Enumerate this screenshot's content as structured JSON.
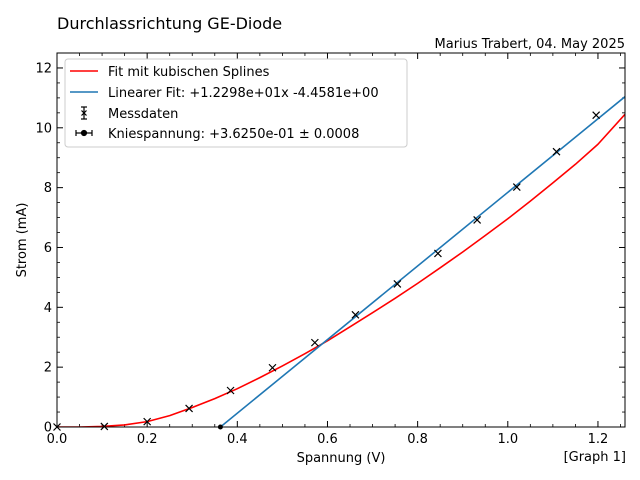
{
  "chart_data": {
    "type": "line",
    "title": "Durchlassrichtung GE-Diode",
    "subtitle": "Marius Trabert, 04. May 2025",
    "corner_label": "[Graph 1]",
    "xlabel": "Spannung (V)",
    "ylabel": "Strom (mA)",
    "xlim": [
      0,
      1.26
    ],
    "ylim": [
      0,
      12.5
    ],
    "xticks": [
      "0.0",
      "0.2",
      "0.4",
      "0.6",
      "0.8",
      "1.0",
      "1.2"
    ],
    "yticks": [
      "0",
      "2",
      "4",
      "6",
      "8",
      "10",
      "12"
    ],
    "grid": false,
    "legend_position": "top-left",
    "series": [
      {
        "name": "Fit mit kubischen Splines",
        "kind": "line",
        "color": "#ff0000",
        "x": [
          0.0,
          0.05,
          0.1,
          0.15,
          0.2,
          0.25,
          0.3,
          0.35,
          0.4,
          0.45,
          0.5,
          0.55,
          0.6,
          0.65,
          0.7,
          0.75,
          0.8,
          0.85,
          0.9,
          0.95,
          1.0,
          1.05,
          1.1,
          1.15,
          1.2,
          1.26
        ],
        "y": [
          0.0,
          0.0,
          0.02,
          0.07,
          0.18,
          0.38,
          0.65,
          0.95,
          1.28,
          1.65,
          2.04,
          2.45,
          2.88,
          3.35,
          3.82,
          4.3,
          4.8,
          5.32,
          5.85,
          6.4,
          6.96,
          7.55,
          8.16,
          8.78,
          9.45,
          10.45
        ]
      },
      {
        "name": "Linearer Fit:  +1.2298e+01x -4.4581e+00",
        "kind": "line",
        "color": "#1f77b4",
        "x": [
          0.3625,
          1.26
        ],
        "y": [
          0.0,
          11.04
        ]
      },
      {
        "name": "Messdaten",
        "kind": "errorbar",
        "color": "#000000",
        "x": [
          0.0,
          0.105,
          0.2,
          0.293,
          0.385,
          0.478,
          0.572,
          0.662,
          0.755,
          0.845,
          0.932,
          1.02,
          1.108,
          1.196
        ],
        "y": [
          0.0,
          0.02,
          0.18,
          0.62,
          1.22,
          1.98,
          2.82,
          3.75,
          4.78,
          5.8,
          6.92,
          8.02,
          9.2,
          10.42
        ]
      },
      {
        "name": "Kniespannung: +3.6250e-01 ± 0.0008",
        "kind": "point",
        "color": "#000000",
        "x": [
          0.3625
        ],
        "y": [
          0.0
        ]
      }
    ]
  }
}
